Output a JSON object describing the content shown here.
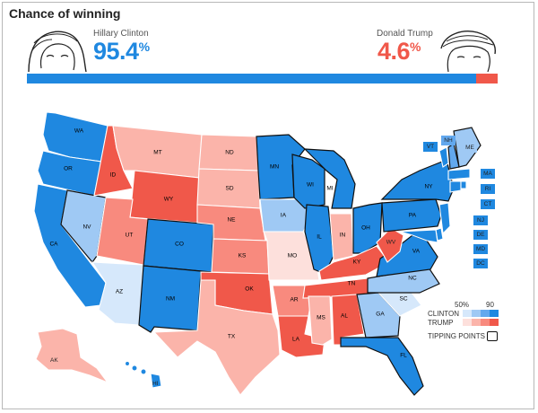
{
  "title": "Chance of winning",
  "clinton": {
    "name": "Hillary Clinton",
    "pct": "95.4",
    "unit": "%",
    "value": 95.4
  },
  "trump": {
    "name": "Donald Trump",
    "pct": "4.6",
    "unit": "%",
    "value": 4.6
  },
  "colors": {
    "blue_dark": "#1f88e0",
    "blue_mid": "#62a8ee",
    "blue_light": "#9fc9f4",
    "blue_pale": "#d6e8fb",
    "red_dark": "#f0584a",
    "red_mid": "#f88a7e",
    "red_light": "#fbb4aa",
    "red_pale": "#fde0dc"
  },
  "states": {
    "WA": "WA",
    "OR": "OR",
    "CA": "CA",
    "NV": "NV",
    "ID": "ID",
    "MT": "MT",
    "WY": "WY",
    "UT": "UT",
    "AZ": "AZ",
    "CO": "CO",
    "NM": "NM",
    "ND": "ND",
    "SD": "SD",
    "NE": "NE",
    "KS": "KS",
    "OK": "OK",
    "TX": "TX",
    "MN": "MN",
    "IA": "IA",
    "MO": "MO",
    "AR": "AR",
    "LA": "LA",
    "WI": "WI",
    "IL": "IL",
    "MI": "MI",
    "IN": "IN",
    "OH": "OH",
    "KY": "KY",
    "TN": "TN",
    "MS": "MS",
    "AL": "AL",
    "GA": "GA",
    "FL": "FL",
    "SC": "SC",
    "NC": "NC",
    "VA": "VA",
    "WV": "WV",
    "PA": "PA",
    "NY": "NY",
    "VT": "VT",
    "NH": "NH",
    "ME": "ME",
    "MA": "MA",
    "RI": "RI",
    "CT": "CT",
    "NJ": "NJ",
    "DE": "DE",
    "MD": "MD",
    "DC": "DC",
    "AK": "AK",
    "HI": "HI"
  },
  "legend": {
    "low": "50%",
    "high": "90",
    "clinton": "CLINTON",
    "trump": "TRUMP",
    "tipping": "TIPPING POINTS"
  }
}
